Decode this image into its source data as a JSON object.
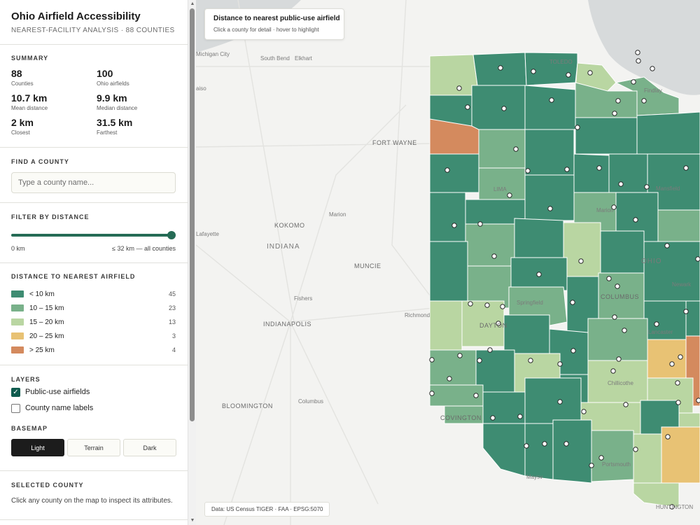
{
  "header": {
    "title": "Ohio Airfield Accessibility",
    "subtitle": "NEAREST-FACILITY ANALYSIS · 88 COUNTIES"
  },
  "summary": {
    "title": "SUMMARY",
    "stats": [
      {
        "value": "88",
        "label": "Counties"
      },
      {
        "value": "100",
        "label": "Ohio airfields"
      },
      {
        "value": "10.7 km",
        "label": "Mean distance"
      },
      {
        "value": "9.9 km",
        "label": "Median distance"
      },
      {
        "value": "2 km",
        "label": "Closest"
      },
      {
        "value": "31.5 km",
        "label": "Farthest"
      }
    ]
  },
  "find": {
    "title": "FIND A COUNTY",
    "placeholder": "Type a county name..."
  },
  "filter": {
    "title": "FILTER BY DISTANCE",
    "min_label": "0 km",
    "max_label": "≤ 32 km — all counties",
    "value_fraction": 1.0
  },
  "legend": {
    "title": "DISTANCE TO NEAREST AIRFIELD",
    "items": [
      {
        "label": "< 10 km",
        "count": "45",
        "color": "#3e8c72"
      },
      {
        "label": "10 – 15 km",
        "count": "23",
        "color": "#79b18a"
      },
      {
        "label": "15 – 20 km",
        "count": "13",
        "color": "#b9d6a2"
      },
      {
        "label": "20 – 25 km",
        "count": "3",
        "color": "#e8c274"
      },
      {
        "label": "> 25 km",
        "count": "4",
        "color": "#d48a5e"
      }
    ]
  },
  "layers": {
    "title": "LAYERS",
    "airfields_label": "Public-use airfields",
    "airfields_checked": true,
    "labels_label": "County name labels",
    "labels_checked": false,
    "basemap_title": "BASEMAP",
    "basemap_options": [
      "Light",
      "Terrain",
      "Dark"
    ],
    "basemap_selected": "Light"
  },
  "selected": {
    "title": "SELECTED COUNTY",
    "hint": "Click any county on the map to inspect its attributes."
  },
  "map": {
    "card_title": "Distance to nearest public-use airfield",
    "card_hint": "Click a county for detail · hover to highlight",
    "attribution": "Data: US Census TIGER · FAA · EPSG:5070",
    "places": {
      "south_bend": "South Bend",
      "elkhart": "Elkhart",
      "michigan_city": "Michigan City",
      "chicago_fragment": "aiso",
      "toledo": "TOLEDO",
      "fort_wayne": "FORT WAYNE",
      "lima": "LIMA",
      "marion": "Marion",
      "kokomo": "KOKOMO",
      "lafayette": "Lafayette",
      "indiana": "INDIANA",
      "muncie": "MUNCIE",
      "ohio": "OHIO",
      "richmond": "Richmond",
      "dayton": "DAYTON",
      "columbus_oh": "COLUMBUS",
      "springfield": "Springfield",
      "fishers": "Fishers",
      "indianapolis": "INDIANAPOLIS",
      "bloomington": "BLOOMINGTON",
      "columbus_in": "Columbus",
      "covington": "COVINGTON",
      "chillicothe": "Chillicothe",
      "portsmouth": "Portsmouth",
      "lancaster": "Lancaster",
      "newark": "Newark",
      "mansfield": "Mansfield",
      "findlay": "Findlay",
      "marion_oh": "Marion",
      "huntington": "HUNTINGTON",
      "maysville": "Maysv"
    }
  },
  "colors": {
    "accent": "#256b55",
    "lake": "#d7dadb"
  }
}
